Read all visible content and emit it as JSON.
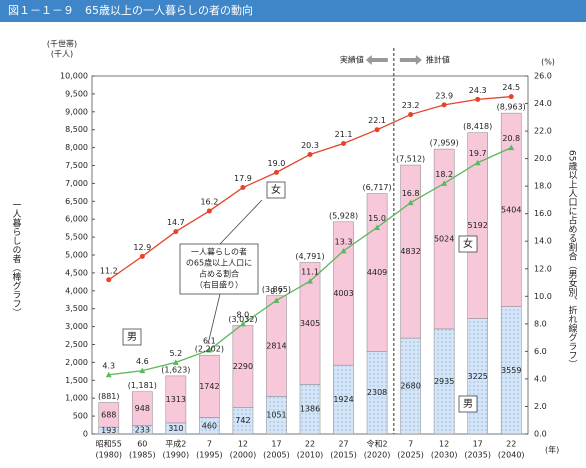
{
  "title": "図１－１－９　65歳以上の一人暮らしの者の動向",
  "chart_data": {
    "type": "bar-line",
    "categories": [
      "昭和55",
      "60",
      "平成2",
      "7",
      "12",
      "17",
      "22",
      "27",
      "令和2",
      "7",
      "12",
      "17",
      "22"
    ],
    "category_years": [
      "(1980)",
      "(1985)",
      "(1990)",
      "(1995)",
      "(2000)",
      "(2005)",
      "(2010)",
      "(2015)",
      "(2020)",
      "(2025)",
      "(2030)",
      "(2035)",
      "(2040)"
    ],
    "x_unit": "(年)",
    "y_units": [
      "(千世帯)",
      "(千人)"
    ],
    "ylabel": "一人暮らしの者（棒グラフ）",
    "y2_unit": "(%)",
    "y2label": "65歳以上人口に占める割合（男女別、折れ線グラフ）",
    "ylim": [
      0,
      10000
    ],
    "yticks": [
      0,
      {
        "value": 500,
        "label": "500"
      },
      {
        "value": 1000,
        "label": "1,000"
      },
      {
        "value": 1500,
        "label": "1,500"
      },
      {
        "value": 2000,
        "label": "2,000"
      },
      {
        "value": 2500,
        "label": "2,500"
      },
      {
        "value": 3000,
        "label": "3,000"
      },
      {
        "value": 3500,
        "label": "3,500"
      },
      {
        "value": 4000,
        "label": "4,000"
      },
      {
        "value": 4500,
        "label": "4,500"
      },
      {
        "value": 5000,
        "label": "5,000"
      },
      {
        "value": 5500,
        "label": "5,500"
      },
      {
        "value": 6000,
        "label": "6,000"
      },
      {
        "value": 6500,
        "label": "6,500"
      },
      {
        "value": 7000,
        "label": "7,000"
      },
      {
        "value": 7500,
        "label": "7,500"
      },
      {
        "value": 8000,
        "label": "8,000"
      },
      {
        "value": 8500,
        "label": "8,500"
      },
      {
        "value": 9000,
        "label": "9,000"
      },
      {
        "value": 9500,
        "label": "9,500"
      },
      {
        "value": 10000,
        "label": "10,000"
      }
    ],
    "y2lim": [
      0,
      26
    ],
    "y2ticks": [
      {
        "value": 0,
        "label": "0.0"
      },
      {
        "value": 2,
        "label": "2.0"
      },
      {
        "value": 4,
        "label": "4.0"
      },
      {
        "value": 6,
        "label": "6.0"
      },
      {
        "value": 8,
        "label": "8.0"
      },
      {
        "value": 10,
        "label": "10.0"
      },
      {
        "value": 12,
        "label": "12.0"
      },
      {
        "value": 14,
        "label": "14.0"
      },
      {
        "value": 16,
        "label": "16.0"
      },
      {
        "value": 18,
        "label": "18.0"
      },
      {
        "value": 20,
        "label": "20.0"
      },
      {
        "value": 22,
        "label": "22.0"
      },
      {
        "value": 24,
        "label": "24.0"
      },
      {
        "value": 26,
        "label": "26.0"
      }
    ],
    "series": [
      {
        "name": "男",
        "type": "bar",
        "color": "#cfe2f5",
        "values": [
          193,
          233,
          310,
          460,
          742,
          1051,
          1386,
          1924,
          2308,
          2680,
          2935,
          3225,
          3559
        ]
      },
      {
        "name": "女",
        "type": "bar",
        "color": "#f6c8da",
        "values": [
          688,
          948,
          1313,
          1742,
          2290,
          2814,
          3405,
          4003,
          4409,
          4832,
          5024,
          5192,
          5404
        ]
      },
      {
        "name": "女",
        "type": "line",
        "axis": "y2",
        "color": "#e6432a",
        "values": [
          11.2,
          12.9,
          14.7,
          16.2,
          17.9,
          19.0,
          20.3,
          21.1,
          22.1,
          23.2,
          23.9,
          24.3,
          24.5
        ],
        "value_labels": [
          "11.2",
          "12.9",
          "14.7",
          "16.2",
          "17.9",
          "19.0",
          "20.3",
          "21.1",
          "22.1",
          "23.2",
          "23.9",
          "24.3",
          "24.5"
        ]
      },
      {
        "name": "男",
        "type": "line",
        "axis": "y2",
        "color": "#5cb85c",
        "values": [
          4.3,
          4.6,
          5.2,
          6.1,
          8.0,
          9.7,
          11.1,
          13.3,
          15.0,
          16.8,
          18.2,
          19.7,
          20.8
        ],
        "value_labels": [
          "4.3",
          "4.6",
          "5.2",
          "6.1",
          "8.0",
          "9.7",
          "11.1",
          "13.3",
          "15.0",
          "16.8",
          "18.2",
          "19.7",
          "20.8"
        ]
      }
    ],
    "totals": {
      "values": [
        881,
        1181,
        1623,
        2202,
        3032,
        3865,
        4791,
        5928,
        6717,
        7512,
        7959,
        8418,
        8963
      ],
      "value_labels": [
        "(881)",
        "(1,181)",
        "(1,623)",
        "(2,202)",
        "(3,032)",
        "(3,865)",
        "(4,791)",
        "(5,928)",
        "(6,717)",
        "(7,512)",
        "(7,959)",
        "(8,418)",
        "(8,963)"
      ]
    },
    "annotations": {
      "actual": "実績値",
      "projected": "推計値",
      "callout": [
        "一人暮らしの者",
        "の65歳以上人口に",
        "占める割合",
        "（右目盛り）"
      ]
    }
  }
}
